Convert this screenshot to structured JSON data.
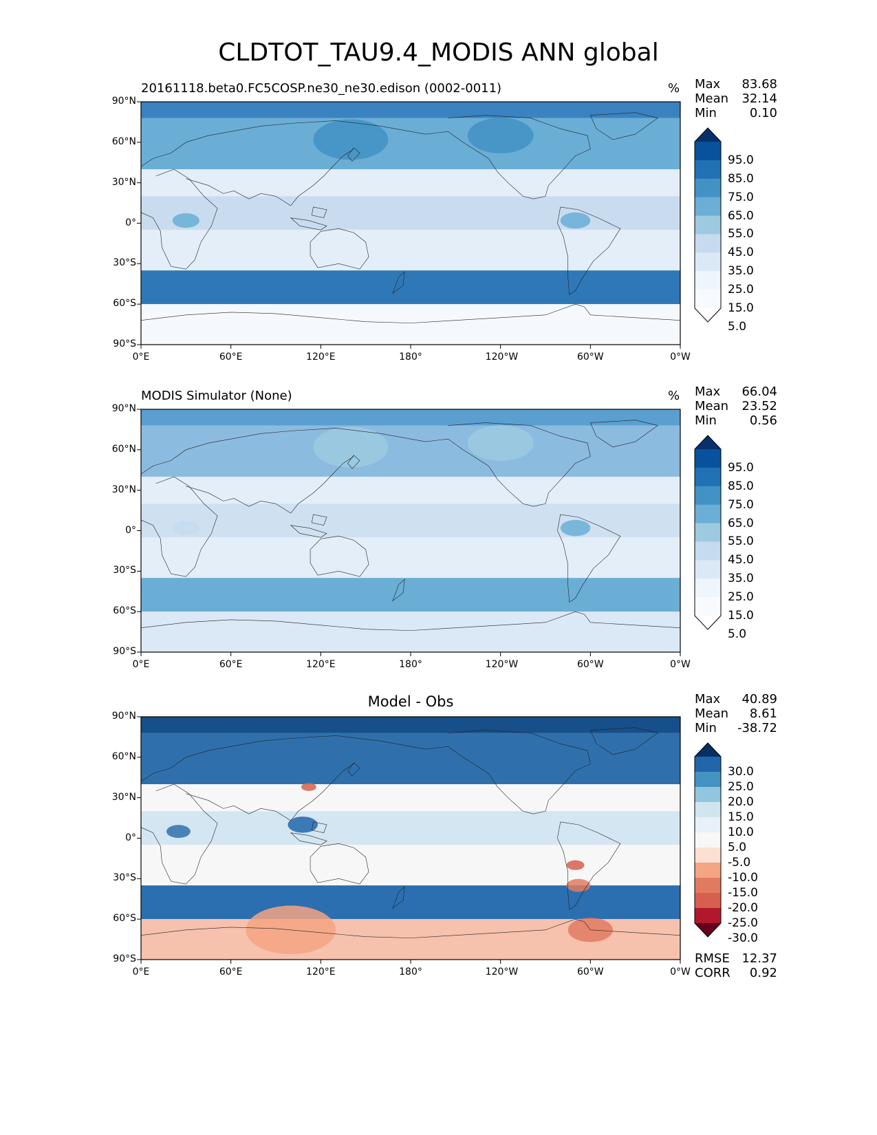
{
  "title": "CLDTOT_TAU9.4_MODIS ANN global",
  "lon_ticks": [
    "0°E",
    "60°E",
    "120°E",
    "180°",
    "120°W",
    "60°W",
    "0°W"
  ],
  "lat_ticks": [
    "90°N",
    "60°N",
    "30°N",
    "0°",
    "30°S",
    "60°S",
    "90°S"
  ],
  "panels": [
    {
      "left_title": "20161118.beta0.FC5COSP.ne30_ne30.edison (0002-0011)",
      "center_title": "",
      "units": "%",
      "stats": [
        {
          "label": "Max",
          "value": "83.68"
        },
        {
          "label": "Mean",
          "value": "32.14"
        },
        {
          "label": "Min",
          "value": "0.10"
        }
      ],
      "colorbar": {
        "labels": [
          "95.0",
          "85.0",
          "75.0",
          "65.0",
          "55.0",
          "45.0",
          "35.0",
          "25.0",
          "15.0",
          "5.0"
        ],
        "colors": [
          "#08306b",
          "#08519c",
          "#2171b5",
          "#4292c6",
          "#6baed6",
          "#9ecae1",
          "#c6dbef",
          "#dbe9f6",
          "#eef5fc",
          "#f7fbff",
          "#ffffff"
        ]
      },
      "footer": []
    },
    {
      "left_title": "MODIS Simulator (None)",
      "center_title": "",
      "units": "%",
      "stats": [
        {
          "label": "Max",
          "value": "66.04"
        },
        {
          "label": "Mean",
          "value": "23.52"
        },
        {
          "label": "Min",
          "value": "0.56"
        }
      ],
      "colorbar": {
        "labels": [
          "95.0",
          "85.0",
          "75.0",
          "65.0",
          "55.0",
          "45.0",
          "35.0",
          "25.0",
          "15.0",
          "5.0"
        ],
        "colors": [
          "#08306b",
          "#08519c",
          "#2171b5",
          "#4292c6",
          "#6baed6",
          "#9ecae1",
          "#c6dbef",
          "#dbe9f6",
          "#eef5fc",
          "#f7fbff",
          "#ffffff"
        ]
      },
      "footer": []
    },
    {
      "left_title": "",
      "center_title": "Model - Obs",
      "units": "",
      "stats": [
        {
          "label": "Max",
          "value": "40.89"
        },
        {
          "label": "Mean",
          "value": "8.61"
        },
        {
          "label": "Min",
          "value": "-38.72"
        }
      ],
      "colorbar": {
        "labels": [
          "30.0",
          "25.0",
          "20.0",
          "15.0",
          "10.0",
          "5.0",
          "-5.0",
          "-10.0",
          "-15.0",
          "-20.0",
          "-25.0",
          "-30.0"
        ],
        "colors": [
          "#053061",
          "#2166ac",
          "#4393c3",
          "#92c5de",
          "#d1e5f0",
          "#e8f1f7",
          "#f7f7f7",
          "#fde0d3",
          "#f4a582",
          "#e07b62",
          "#d6604d",
          "#b2182b",
          "#67001f"
        ]
      },
      "footer": [
        {
          "label": "RMSE",
          "value": "12.37"
        },
        {
          "label": "CORR",
          "value": "0.92"
        }
      ]
    }
  ],
  "map_colors": {
    "panel1": {
      "polar_n": "#3b82c0",
      "northern": "#6aaed6",
      "subtrop": "#e3eef8",
      "tropics": "#c9dcef",
      "storm": "#2f78b8",
      "antarctic": "#f5f9fe"
    },
    "panel2": {
      "polar_n": "#5a9fd0",
      "northern": "#8cbbe0",
      "subtrop": "#e3eef8",
      "tropics": "#cfe0f1",
      "storm": "#6aaed6",
      "antarctic": "#dbe8f5"
    },
    "panel3": {
      "polar_n": "#174f8a",
      "northern": "#2f70ac",
      "subtrop": "#f7f7f7",
      "tropics": "#d3e6f2",
      "storm": "#2b6fb0",
      "antarctic": "#f6c1ad"
    }
  }
}
